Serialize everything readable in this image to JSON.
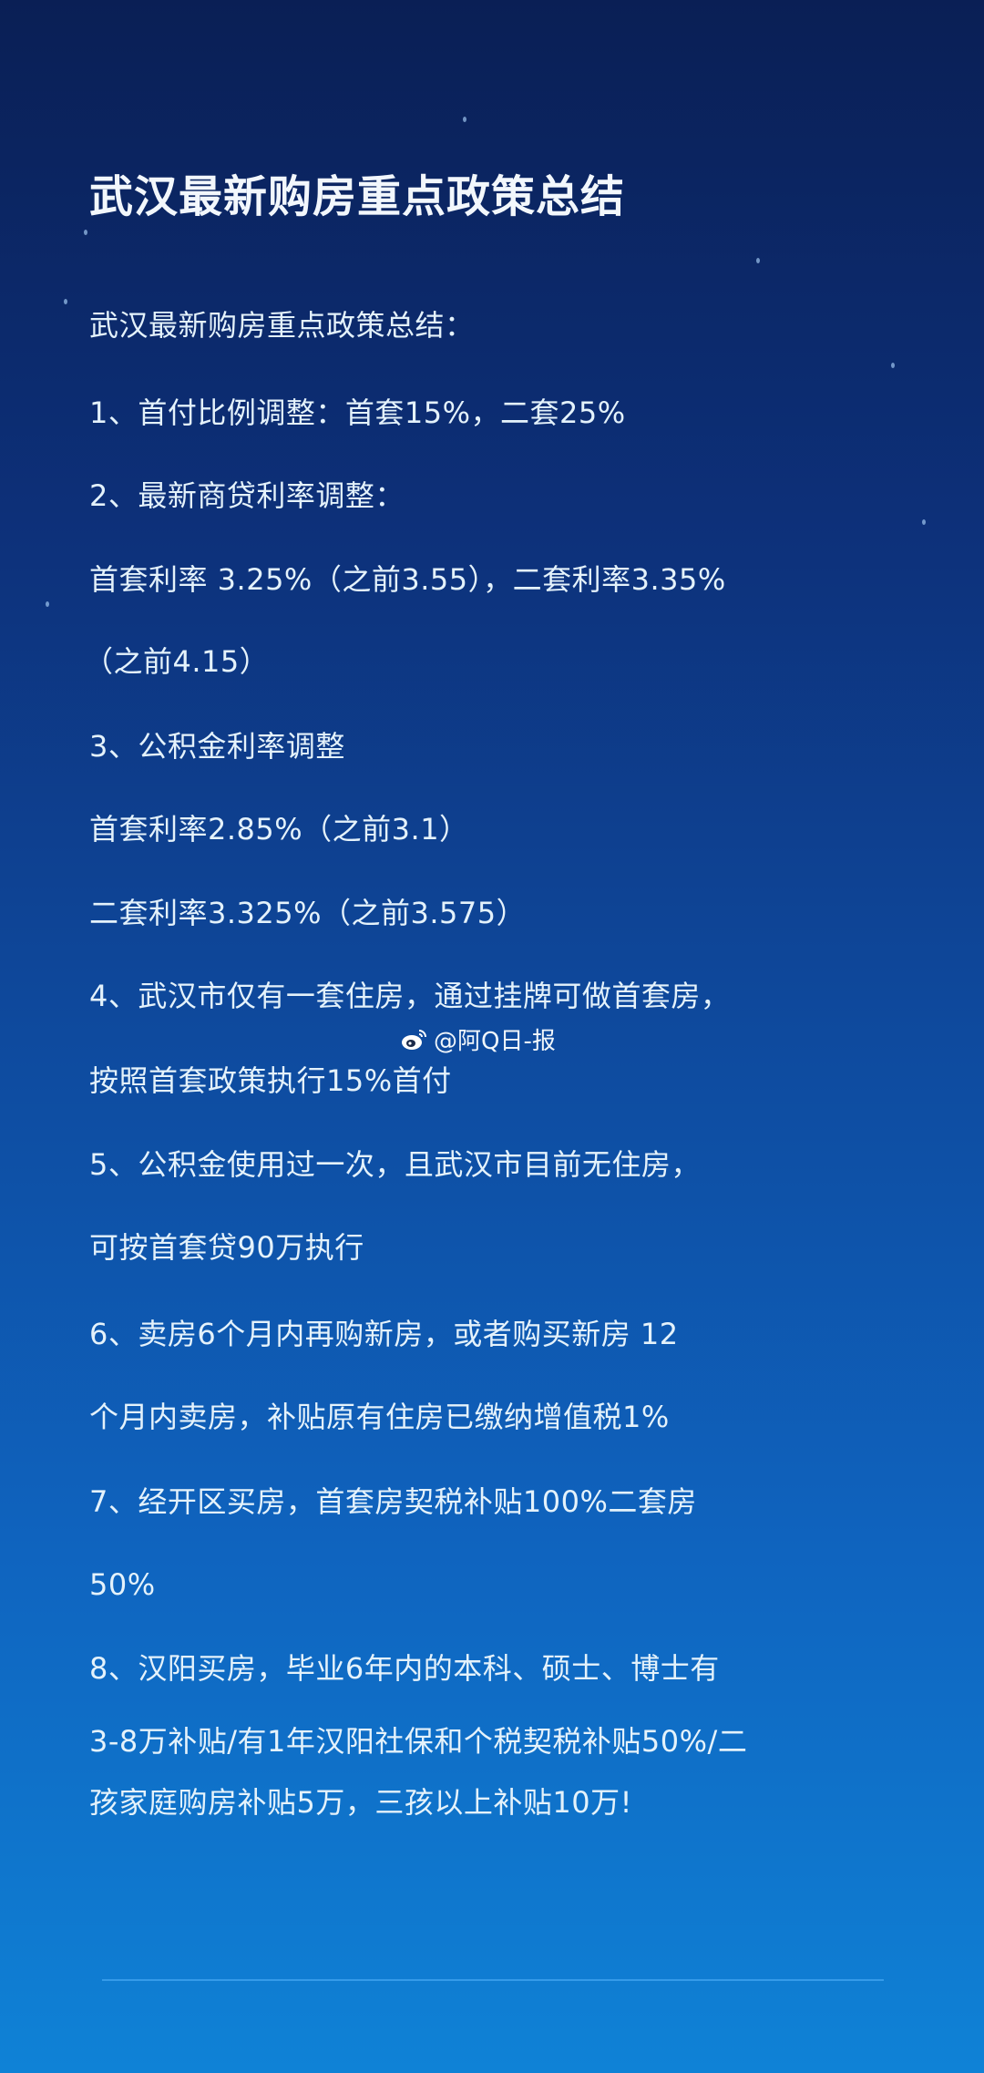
{
  "title": "武汉最新购房重点政策总结",
  "lines": [
    "武汉最新购房重点政策总结：",
    "1、首付比例调整：首套15%，二套25%",
    "2、最新商贷利率调整：",
    "首套利率 3.25%（之前3.55），二套利率3.35%",
    "（之前4.15）",
    "3、公积金利率调整",
    "首套利率2.85%（之前3.1）",
    "二套利率3.325%（之前3.575）",
    "4、武汉市仅有一套住房，通过挂牌可做首套房，",
    "按照首套政策执行15%首付",
    "5、公积金使用过一次，且武汉市目前无住房，",
    "可按首套贷90万执行",
    "6、卖房6个月内再购新房，或者购买新房 12",
    "个月内卖房，补贴原有住房已缴纳增值税1%",
    "7、经开区买房，首套房契税补贴100%二套房",
    "50%",
    "8、汉阳买房，毕业6年内的本科、硕士、博士有",
    "3-8万补贴/有1年汉阳社保和个税契税补贴50%/二",
    "孩家庭购房补贴5万，三孩以上补贴10万!"
  ],
  "watermark": {
    "icon": "weibo-icon",
    "text": "@阿Q日-报"
  }
}
